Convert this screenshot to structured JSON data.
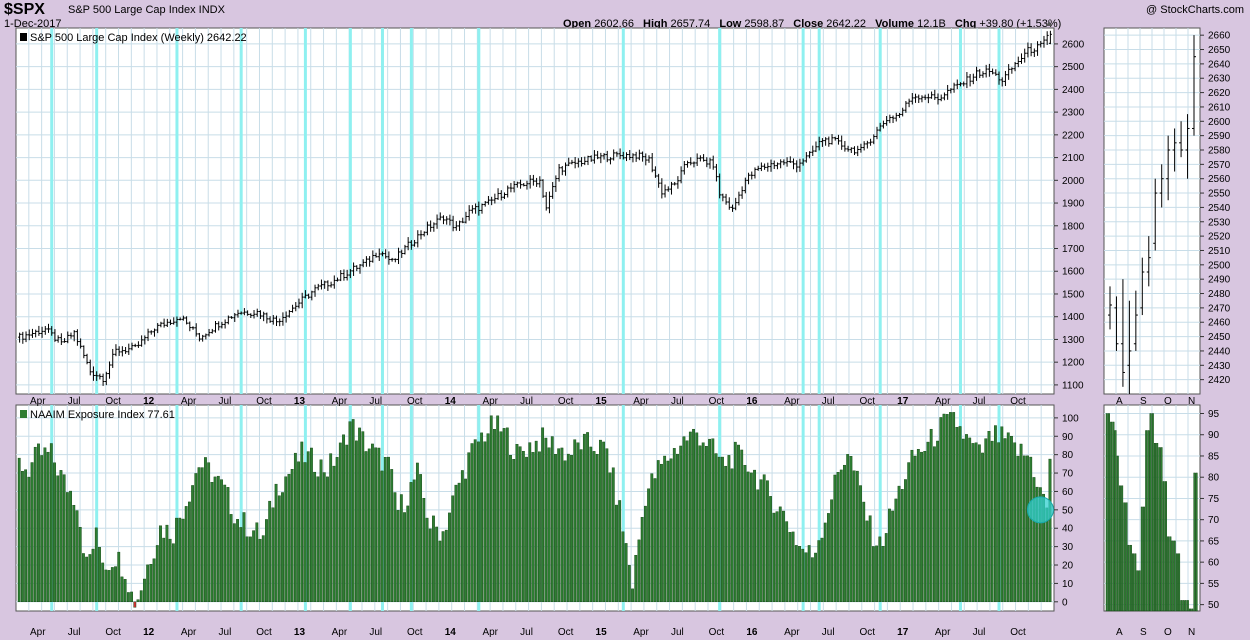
{
  "header": {
    "symbol": "$SPX",
    "name": "S&P 500 Large Cap Index INDX",
    "date": "1-Dec-2017",
    "brand": "@ StockCharts.com",
    "open_label": "Open",
    "open": "2602.66",
    "high_label": "High",
    "high": "2657.74",
    "low_label": "Low",
    "low": "2598.87",
    "close_label": "Close",
    "close": "2642.22",
    "volume_label": "Volume",
    "volume": "12.1B",
    "chg_label": "Chg",
    "chg": "+39.80 (+1.53%)"
  },
  "colors": {
    "background": "#d8c6e0",
    "panel": "#ffffff",
    "grid": "#c8dde8",
    "vline": "#8ff0f0",
    "bar_fill": "#2e7d32",
    "bar_highlight": "#32d0d0",
    "negative_bar": "#cc3333"
  },
  "chart_data": [
    {
      "type": "line",
      "panel": "price-weekly",
      "title": "S&P 500 Large Cap Index (Weekly) 2642.22",
      "style": "ohlc-bars",
      "ylim": [
        1060,
        2670
      ],
      "yticks": [
        1100,
        1200,
        1300,
        1400,
        1500,
        1600,
        1700,
        1800,
        1900,
        2000,
        2100,
        2200,
        2300,
        2400,
        2500,
        2600
      ],
      "x_labels": [
        "Apr",
        "Jul",
        "Oct",
        "12",
        "Apr",
        "Jul",
        "Oct",
        "13",
        "Apr",
        "Jul",
        "Oct",
        "14",
        "Apr",
        "Jul",
        "Oct",
        "15",
        "Apr",
        "Jul",
        "Oct",
        "16",
        "Apr",
        "Jul",
        "Oct",
        "17",
        "Apr",
        "Jul",
        "Oct"
      ],
      "x_label_bold": [
        "12",
        "13",
        "14",
        "15",
        "16",
        "17"
      ],
      "anchors": [
        {
          "w": 0,
          "y": 1310
        },
        {
          "w": 8,
          "y": 1345
        },
        {
          "w": 13,
          "y": 1280
        },
        {
          "w": 17,
          "y": 1330
        },
        {
          "w": 22,
          "y": 1160
        },
        {
          "w": 26,
          "y": 1130
        },
        {
          "w": 30,
          "y": 1250
        },
        {
          "w": 36,
          "y": 1260
        },
        {
          "w": 42,
          "y": 1350
        },
        {
          "w": 50,
          "y": 1400
        },
        {
          "w": 56,
          "y": 1310
        },
        {
          "w": 62,
          "y": 1370
        },
        {
          "w": 68,
          "y": 1420
        },
        {
          "w": 74,
          "y": 1420
        },
        {
          "w": 80,
          "y": 1380
        },
        {
          "w": 86,
          "y": 1450
        },
        {
          "w": 92,
          "y": 1520
        },
        {
          "w": 98,
          "y": 1560
        },
        {
          "w": 104,
          "y": 1610
        },
        {
          "w": 108,
          "y": 1640
        },
        {
          "w": 112,
          "y": 1690
        },
        {
          "w": 116,
          "y": 1640
        },
        {
          "w": 120,
          "y": 1700
        },
        {
          "w": 126,
          "y": 1780
        },
        {
          "w": 132,
          "y": 1840
        },
        {
          "w": 136,
          "y": 1790
        },
        {
          "w": 140,
          "y": 1860
        },
        {
          "w": 146,
          "y": 1900
        },
        {
          "w": 152,
          "y": 1960
        },
        {
          "w": 158,
          "y": 1990
        },
        {
          "w": 162,
          "y": 2000
        },
        {
          "w": 164,
          "y": 1880
        },
        {
          "w": 168,
          "y": 2050
        },
        {
          "w": 174,
          "y": 2080
        },
        {
          "w": 180,
          "y": 2100
        },
        {
          "w": 186,
          "y": 2110
        },
        {
          "w": 192,
          "y": 2110
        },
        {
          "w": 196,
          "y": 2090
        },
        {
          "w": 200,
          "y": 1950
        },
        {
          "w": 204,
          "y": 1980
        },
        {
          "w": 208,
          "y": 2080
        },
        {
          "w": 212,
          "y": 2090
        },
        {
          "w": 216,
          "y": 2070
        },
        {
          "w": 218,
          "y": 1940
        },
        {
          "w": 222,
          "y": 1870
        },
        {
          "w": 226,
          "y": 2000
        },
        {
          "w": 230,
          "y": 2050
        },
        {
          "w": 234,
          "y": 2070
        },
        {
          "w": 238,
          "y": 2080
        },
        {
          "w": 242,
          "y": 2070
        },
        {
          "w": 246,
          "y": 2110
        },
        {
          "w": 250,
          "y": 2180
        },
        {
          "w": 254,
          "y": 2170
        },
        {
          "w": 258,
          "y": 2140
        },
        {
          "w": 262,
          "y": 2130
        },
        {
          "w": 266,
          "y": 2200
        },
        {
          "w": 270,
          "y": 2270
        },
        {
          "w": 274,
          "y": 2290
        },
        {
          "w": 278,
          "y": 2370
        },
        {
          "w": 282,
          "y": 2370
        },
        {
          "w": 286,
          "y": 2360
        },
        {
          "w": 290,
          "y": 2400
        },
        {
          "w": 294,
          "y": 2430
        },
        {
          "w": 298,
          "y": 2470
        },
        {
          "w": 302,
          "y": 2480
        },
        {
          "w": 306,
          "y": 2440
        },
        {
          "w": 310,
          "y": 2510
        },
        {
          "w": 314,
          "y": 2570
        },
        {
          "w": 318,
          "y": 2590
        },
        {
          "w": 321,
          "y": 2642
        }
      ],
      "weeks": 322,
      "last_bar": {
        "open": 2602.66,
        "high": 2657.74,
        "low": 2598.87,
        "close": 2642.22
      }
    },
    {
      "type": "line",
      "panel": "price-daily",
      "style": "ohlc-bars",
      "ylim": [
        2410,
        2665
      ],
      "yticks": [
        2420,
        2430,
        2440,
        2450,
        2460,
        2470,
        2480,
        2490,
        2500,
        2510,
        2520,
        2530,
        2540,
        2550,
        2560,
        2570,
        2580,
        2590,
        2600,
        2610,
        2620,
        2630,
        2640,
        2650,
        2660
      ],
      "x_labels": [
        "A",
        "S",
        "O",
        "N"
      ],
      "bars": [
        {
          "o": 2465,
          "h": 2485,
          "l": 2455,
          "c": 2472
        },
        {
          "o": 2470,
          "h": 2478,
          "l": 2440,
          "c": 2445
        },
        {
          "o": 2445,
          "h": 2490,
          "l": 2415,
          "c": 2425
        },
        {
          "o": 2430,
          "h": 2475,
          "l": 2410,
          "c": 2440
        },
        {
          "o": 2445,
          "h": 2482,
          "l": 2440,
          "c": 2465
        },
        {
          "o": 2470,
          "h": 2505,
          "l": 2465,
          "c": 2495
        },
        {
          "o": 2495,
          "h": 2520,
          "l": 2485,
          "c": 2505
        },
        {
          "o": 2515,
          "h": 2560,
          "l": 2510,
          "c": 2550
        },
        {
          "o": 2550,
          "h": 2570,
          "l": 2540,
          "c": 2560
        },
        {
          "o": 2560,
          "h": 2590,
          "l": 2545,
          "c": 2580
        },
        {
          "o": 2580,
          "h": 2595,
          "l": 2565,
          "c": 2585
        },
        {
          "o": 2585,
          "h": 2600,
          "l": 2575,
          "c": 2580
        },
        {
          "o": 2580,
          "h": 2605,
          "l": 2560,
          "c": 2595
        },
        {
          "o": 2595,
          "h": 2660,
          "l": 2590,
          "c": 2645
        }
      ]
    },
    {
      "type": "bar",
      "panel": "naaim-weekly",
      "title": "NAAIM Exposure Index 77.61",
      "ylim": [
        -5,
        107
      ],
      "yticks": [
        0,
        10,
        20,
        30,
        40,
        50,
        60,
        70,
        80,
        90,
        100
      ],
      "x_labels": [
        "Apr",
        "Jul",
        "Oct",
        "12",
        "Apr",
        "Jul",
        "Oct",
        "13",
        "Apr",
        "Jul",
        "Oct",
        "14",
        "Apr",
        "Jul",
        "Oct",
        "15",
        "Apr",
        "Jul",
        "Oct",
        "16",
        "Apr",
        "Jul",
        "Oct",
        "17",
        "Apr",
        "Jul",
        "Oct"
      ],
      "x_label_bold": [
        "12",
        "13",
        "14",
        "15",
        "16",
        "17"
      ],
      "anchors": [
        {
          "w": 0,
          "y": 75
        },
        {
          "w": 3,
          "y": 72
        },
        {
          "w": 6,
          "y": 80
        },
        {
          "w": 10,
          "y": 80
        },
        {
          "w": 14,
          "y": 65
        },
        {
          "w": 18,
          "y": 55
        },
        {
          "w": 21,
          "y": 20
        },
        {
          "w": 24,
          "y": 35
        },
        {
          "w": 27,
          "y": 20
        },
        {
          "w": 30,
          "y": 25
        },
        {
          "w": 33,
          "y": 18
        },
        {
          "w": 36,
          "y": -3
        },
        {
          "w": 40,
          "y": 20
        },
        {
          "w": 44,
          "y": 40
        },
        {
          "w": 48,
          "y": 38
        },
        {
          "w": 52,
          "y": 55
        },
        {
          "w": 56,
          "y": 75
        },
        {
          "w": 60,
          "y": 70
        },
        {
          "w": 64,
          "y": 60
        },
        {
          "w": 68,
          "y": 45
        },
        {
          "w": 72,
          "y": 40
        },
        {
          "w": 76,
          "y": 35
        },
        {
          "w": 80,
          "y": 62
        },
        {
          "w": 84,
          "y": 70
        },
        {
          "w": 88,
          "y": 80
        },
        {
          "w": 92,
          "y": 76
        },
        {
          "w": 96,
          "y": 72
        },
        {
          "w": 100,
          "y": 82
        },
        {
          "w": 103,
          "y": 97
        },
        {
          "w": 107,
          "y": 88
        },
        {
          "w": 111,
          "y": 80
        },
        {
          "w": 115,
          "y": 74
        },
        {
          "w": 118,
          "y": 50
        },
        {
          "w": 121,
          "y": 58
        },
        {
          "w": 124,
          "y": 70
        },
        {
          "w": 128,
          "y": 42
        },
        {
          "w": 132,
          "y": 38
        },
        {
          "w": 136,
          "y": 60
        },
        {
          "w": 140,
          "y": 78
        },
        {
          "w": 144,
          "y": 90
        },
        {
          "w": 148,
          "y": 96
        },
        {
          "w": 152,
          "y": 90
        },
        {
          "w": 155,
          "y": 80
        },
        {
          "w": 159,
          "y": 85
        },
        {
          "w": 163,
          "y": 88
        },
        {
          "w": 167,
          "y": 85
        },
        {
          "w": 171,
          "y": 80
        },
        {
          "w": 175,
          "y": 86
        },
        {
          "w": 179,
          "y": 85
        },
        {
          "w": 183,
          "y": 82
        },
        {
          "w": 187,
          "y": 50
        },
        {
          "w": 191,
          "y": 10
        },
        {
          "w": 195,
          "y": 58
        },
        {
          "w": 199,
          "y": 72
        },
        {
          "w": 203,
          "y": 80
        },
        {
          "w": 207,
          "y": 88
        },
        {
          "w": 211,
          "y": 92
        },
        {
          "w": 215,
          "y": 85
        },
        {
          "w": 219,
          "y": 75
        },
        {
          "w": 223,
          "y": 80
        },
        {
          "w": 227,
          "y": 75
        },
        {
          "w": 231,
          "y": 65
        },
        {
          "w": 235,
          "y": 55
        },
        {
          "w": 239,
          "y": 45
        },
        {
          "w": 243,
          "y": 30
        },
        {
          "w": 247,
          "y": 25
        },
        {
          "w": 251,
          "y": 45
        },
        {
          "w": 255,
          "y": 70
        },
        {
          "w": 258,
          "y": 82
        },
        {
          "w": 262,
          "y": 60
        },
        {
          "w": 265,
          "y": 40
        },
        {
          "w": 268,
          "y": 30
        },
        {
          "w": 271,
          "y": 45
        },
        {
          "w": 275,
          "y": 65
        },
        {
          "w": 279,
          "y": 80
        },
        {
          "w": 283,
          "y": 85
        },
        {
          "w": 287,
          "y": 95
        },
        {
          "w": 291,
          "y": 100
        },
        {
          "w": 295,
          "y": 88
        },
        {
          "w": 299,
          "y": 80
        },
        {
          "w": 303,
          "y": 90
        },
        {
          "w": 307,
          "y": 88
        },
        {
          "w": 311,
          "y": 82
        },
        {
          "w": 315,
          "y": 78
        },
        {
          "w": 318,
          "y": 60
        },
        {
          "w": 320,
          "y": 52
        },
        {
          "w": 321,
          "y": 77.61
        }
      ],
      "weeks": 322,
      "highlight_last": true
    },
    {
      "type": "bar",
      "panel": "naaim-daily",
      "ylim": [
        48.5,
        97
      ],
      "yticks": [
        50,
        55,
        60,
        65,
        70,
        75,
        80,
        85,
        90,
        95
      ],
      "x_labels": [
        "A",
        "S",
        "O",
        "N"
      ],
      "values": [
        95,
        95,
        93,
        93,
        91,
        85,
        78,
        78,
        74,
        74,
        64,
        64,
        62,
        62,
        58,
        58,
        73,
        73,
        91,
        91,
        95,
        95,
        88,
        88,
        87,
        87,
        79,
        79,
        66,
        66,
        65,
        65,
        62,
        62,
        51,
        51,
        51,
        51,
        49,
        49,
        81,
        81
      ]
    }
  ],
  "vertical_markers_weeks": [
    10,
    24,
    49,
    69,
    89,
    103,
    113,
    122,
    143,
    188,
    218,
    244,
    249,
    268,
    293,
    305
  ],
  "zoom_marker": {
    "panel": "naaim-weekly",
    "week": 321,
    "value": 50
  }
}
